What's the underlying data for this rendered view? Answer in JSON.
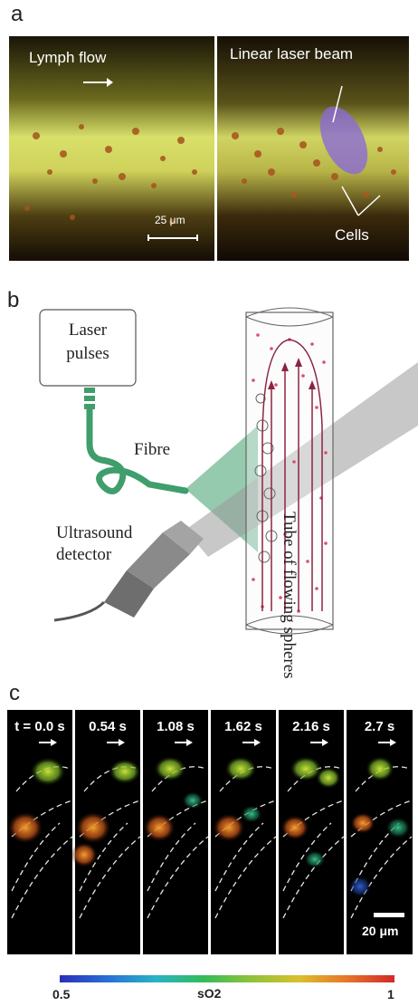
{
  "panel_a": {
    "letter": "a",
    "left_label": "Lymph flow",
    "scale_label": "25 μm",
    "right_label": "Linear laser beam",
    "cells_label": "Cells"
  },
  "panel_b": {
    "letter": "b",
    "laser_label_line1": "Laser",
    "laser_label_line2": "pulses",
    "fibre_label": "Fibre",
    "detector_line1": "Ultrasound",
    "detector_line2": "detector",
    "tube_label": "Tube of flowing spheres"
  },
  "panel_c": {
    "letter": "c",
    "frames": [
      "t = 0.0 s",
      "0.54 s",
      "1.08 s",
      "1.62 s",
      "2.16 s",
      "2.7 s"
    ],
    "scale_label": "20 μm",
    "colorbar_min": "0.5",
    "colorbar_max": "1",
    "colorbar_label": "sO2"
  },
  "colors": {
    "fibre_green": "#3f9e6c",
    "arrow_red": "#8b2440",
    "dot_red": "#d94f6e"
  }
}
